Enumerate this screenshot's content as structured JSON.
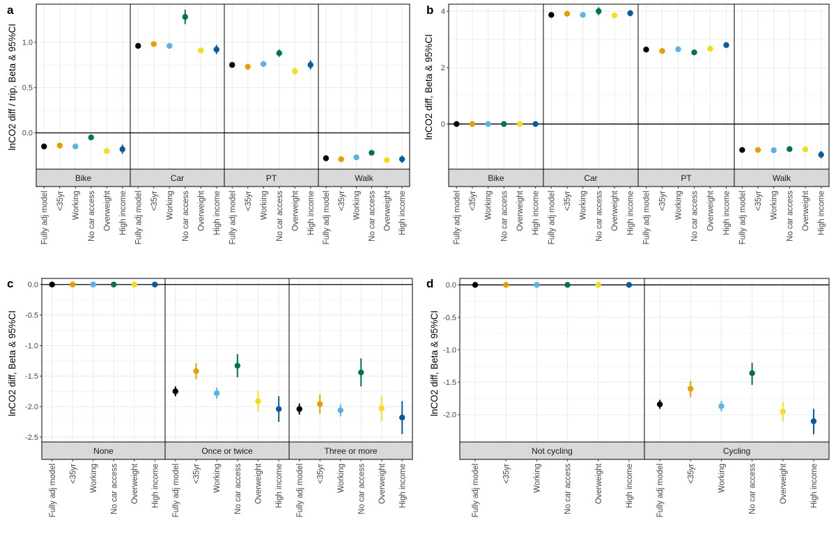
{
  "x_labels": [
    "Fully adj model",
    "<35yr",
    "Working",
    "No car access",
    "Overweight",
    "High income"
  ],
  "chart_data": [
    {
      "panel": "a",
      "type": "scatter",
      "ylabel": "lnCO2 diff / trip, Beta & 95%CI",
      "ylim": [
        -0.4,
        1.42
      ],
      "yticks": [
        0.0,
        0.5,
        1.0
      ],
      "ytick_labels": [
        "0.0",
        "0.5",
        "1.0"
      ],
      "zero_line": 0,
      "facets": [
        {
          "label": "Bike",
          "points": [
            [
              -0.15,
              -0.17,
              -0.13
            ],
            [
              -0.14,
              -0.16,
              -0.12
            ],
            [
              -0.15,
              -0.17,
              -0.13
            ],
            [
              -0.05,
              -0.08,
              -0.02
            ],
            [
              -0.2,
              -0.23,
              -0.17
            ],
            [
              -0.18,
              -0.23,
              -0.13
            ]
          ]
        },
        {
          "label": "Car",
          "points": [
            [
              0.96,
              0.94,
              0.98
            ],
            [
              0.98,
              0.96,
              1.01
            ],
            [
              0.96,
              0.94,
              0.98
            ],
            [
              1.28,
              1.2,
              1.36
            ],
            [
              0.91,
              0.88,
              0.94
            ],
            [
              0.92,
              0.87,
              0.97
            ]
          ]
        },
        {
          "label": "PT",
          "points": [
            [
              0.75,
              0.73,
              0.77
            ],
            [
              0.73,
              0.71,
              0.75
            ],
            [
              0.76,
              0.74,
              0.78
            ],
            [
              0.88,
              0.84,
              0.92
            ],
            [
              0.68,
              0.64,
              0.72
            ],
            [
              0.75,
              0.7,
              0.8
            ]
          ]
        },
        {
          "label": "Walk",
          "points": [
            [
              -0.28,
              -0.3,
              -0.26
            ],
            [
              -0.29,
              -0.31,
              -0.27
            ],
            [
              -0.27,
              -0.29,
              -0.25
            ],
            [
              -0.22,
              -0.25,
              -0.19
            ],
            [
              -0.3,
              -0.33,
              -0.27
            ],
            [
              -0.29,
              -0.33,
              -0.25
            ]
          ]
        }
      ]
    },
    {
      "panel": "b",
      "type": "scatter",
      "ylabel": "lnCO2 diff, Beta & 95%CI",
      "ylim": [
        -1.6,
        4.25
      ],
      "yticks": [
        0,
        2,
        4
      ],
      "ytick_labels": [
        "0",
        "2",
        "4"
      ],
      "zero_line": 0,
      "facets": [
        {
          "label": "Bike",
          "points": [
            [
              0,
              0,
              0
            ],
            [
              0,
              0,
              0
            ],
            [
              0,
              0,
              0
            ],
            [
              0,
              0,
              0
            ],
            [
              0,
              0,
              0
            ],
            [
              0,
              0,
              0
            ]
          ]
        },
        {
          "label": "Car",
          "points": [
            [
              3.87,
              3.8,
              3.94
            ],
            [
              3.91,
              3.83,
              3.99
            ],
            [
              3.87,
              3.8,
              3.94
            ],
            [
              4.0,
              3.86,
              4.14
            ],
            [
              3.85,
              3.77,
              3.93
            ],
            [
              3.93,
              3.82,
              4.04
            ]
          ]
        },
        {
          "label": "PT",
          "points": [
            [
              2.64,
              2.58,
              2.7
            ],
            [
              2.59,
              2.53,
              2.65
            ],
            [
              2.65,
              2.59,
              2.71
            ],
            [
              2.54,
              2.46,
              2.62
            ],
            [
              2.67,
              2.6,
              2.74
            ],
            [
              2.8,
              2.72,
              2.88
            ]
          ]
        },
        {
          "label": "Walk",
          "points": [
            [
              -0.92,
              -0.98,
              -0.86
            ],
            [
              -0.92,
              -0.99,
              -0.85
            ],
            [
              -0.93,
              -0.99,
              -0.87
            ],
            [
              -0.89,
              -0.98,
              -0.8
            ],
            [
              -0.9,
              -1.0,
              -0.8
            ],
            [
              -1.09,
              -1.22,
              -0.96
            ]
          ]
        }
      ]
    },
    {
      "panel": "c",
      "type": "scatter",
      "ylabel": "lnCO2 diff, Beta & 95%CI",
      "ylim": [
        -2.58,
        0.1
      ],
      "yticks": [
        0.0,
        -0.5,
        -1.0,
        -1.5,
        -2.0,
        -2.5
      ],
      "ytick_labels": [
        "0.0",
        "-0.5",
        "-1.0",
        "-1.5",
        "-2.0",
        "-2.5"
      ],
      "zero_line": 0,
      "facets": [
        {
          "label": "None",
          "points": [
            [
              0,
              0,
              0
            ],
            [
              0,
              0,
              0
            ],
            [
              0,
              0,
              0
            ],
            [
              0,
              0,
              0
            ],
            [
              0,
              0,
              0
            ],
            [
              0,
              0,
              0
            ]
          ]
        },
        {
          "label": "Once or twice",
          "points": [
            [
              -1.75,
              -1.83,
              -1.67
            ],
            [
              -1.42,
              -1.55,
              -1.29
            ],
            [
              -1.78,
              -1.87,
              -1.69
            ],
            [
              -1.33,
              -1.52,
              -1.14
            ],
            [
              -1.91,
              -2.08,
              -1.74
            ],
            [
              -2.04,
              -2.25,
              -1.83
            ]
          ]
        },
        {
          "label": "Three or more",
          "points": [
            [
              -2.04,
              -2.13,
              -1.95
            ],
            [
              -1.96,
              -2.12,
              -1.8
            ],
            [
              -2.06,
              -2.16,
              -1.96
            ],
            [
              -1.44,
              -1.67,
              -1.21
            ],
            [
              -2.03,
              -2.24,
              -1.82
            ],
            [
              -2.18,
              -2.45,
              -1.91
            ]
          ]
        }
      ]
    },
    {
      "panel": "d",
      "type": "scatter",
      "ylabel": "lnCO2 diff, Beta & 95%CI",
      "ylim": [
        -2.42,
        0.1
      ],
      "yticks": [
        0.0,
        -0.5,
        -1.0,
        -1.5,
        -2.0
      ],
      "ytick_labels": [
        "0.0",
        "-0.5",
        "-1.0",
        "-1.5",
        "-2.0"
      ],
      "zero_line": 0,
      "facets": [
        {
          "label": "Not cycling",
          "points": [
            [
              0,
              0,
              0
            ],
            [
              0,
              0,
              0
            ],
            [
              0,
              0,
              0
            ],
            [
              0,
              0,
              0
            ],
            [
              0,
              0,
              0
            ],
            [
              0,
              0,
              0
            ]
          ]
        },
        {
          "label": "Cycling",
          "points": [
            [
              -1.84,
              -1.91,
              -1.77
            ],
            [
              -1.6,
              -1.73,
              -1.48
            ],
            [
              -1.87,
              -1.95,
              -1.79
            ],
            [
              -1.36,
              -1.54,
              -1.2
            ],
            [
              -1.95,
              -2.1,
              -1.8
            ],
            [
              -2.1,
              -2.3,
              -1.91
            ]
          ]
        }
      ]
    }
  ],
  "series_colors": [
    "#000000",
    "#e69f00",
    "#56b4e9",
    "#00734f",
    "#f5dc1e",
    "#0a5a9f"
  ]
}
